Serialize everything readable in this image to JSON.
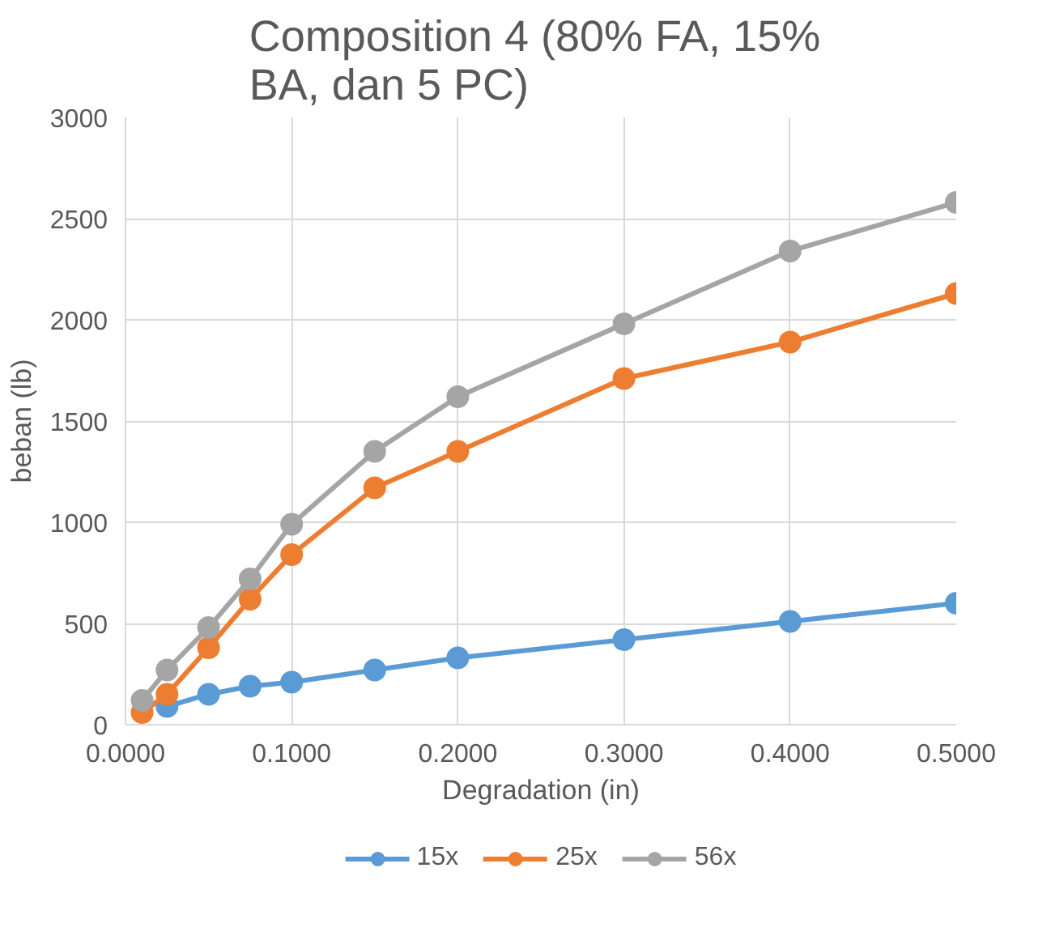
{
  "chart_data": {
    "type": "line",
    "title": "Composition 4  (80% FA, 15% BA, dan 5 PC)",
    "xlabel": "Degradation (in)",
    "ylabel": "beban (lb)",
    "x": [
      0.01,
      0.025,
      0.05,
      0.075,
      0.1,
      0.15,
      0.2,
      0.3,
      0.4,
      0.5
    ],
    "series": [
      {
        "name": "15x",
        "color": "#5b9bd5",
        "values": [
          null,
          90,
          150,
          190,
          210,
          270,
          330,
          420,
          510,
          600
        ]
      },
      {
        "name": "25x",
        "color": "#ed7d31",
        "values": [
          60,
          150,
          380,
          620,
          840,
          1170,
          1350,
          1710,
          1890,
          2130
        ]
      },
      {
        "name": "56x",
        "color": "#a5a5a5",
        "values": [
          120,
          270,
          480,
          720,
          990,
          1350,
          1620,
          1980,
          2340,
          2580
        ]
      }
    ],
    "xlim": [
      0,
      0.5
    ],
    "ylim": [
      0,
      3000
    ],
    "xticks": [
      {
        "value": 0,
        "label": "0.0000"
      },
      {
        "value": 0.1,
        "label": "0.1000"
      },
      {
        "value": 0.2,
        "label": "0.2000"
      },
      {
        "value": 0.3,
        "label": "0.3000"
      },
      {
        "value": 0.4,
        "label": "0.4000"
      },
      {
        "value": 0.5,
        "label": "0.5000"
      }
    ],
    "yticks": [
      0,
      500,
      1000,
      1500,
      2000,
      2500,
      3000
    ],
    "grid": true,
    "legend": "bottom",
    "marker": "circle",
    "line_style": "solid"
  }
}
